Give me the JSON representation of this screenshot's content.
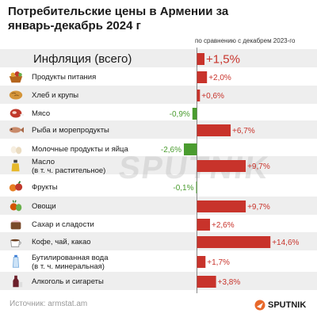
{
  "header": {
    "title": "Потребительские цены в Армении за январь-декабрь 2024 г",
    "subtitle": "по сравнению с декабрем 2023-го"
  },
  "source": "Источник: armstat.am",
  "brand": "SPUTNIK",
  "watermark": "SPUTNIK",
  "colors": {
    "positive": "#c8332b",
    "negative": "#4a9c2f",
    "row_alt": "#eeeeee"
  },
  "chart_data": {
    "type": "bar",
    "orientation": "horizontal",
    "title": "Потребительские цены в Армении за январь-декабрь 2024 г",
    "subtitle": "по сравнению с декабрем 2023-го",
    "categories": [
      "Инфляция (всего)",
      "Продукты питания",
      "Хлеб и крупы",
      "Мясо",
      "Рыба и морепродукты",
      "Молочные продукты и яйца",
      "Масло\n(в т. ч. растительное)",
      "Фрукты",
      "Овощи",
      "Сахар и сладости",
      "Кофе, чай, какао",
      "Бутилированная вода\n(в т. ч. минеральная)",
      "Алкоголь и сигареты"
    ],
    "values": [
      1.5,
      2.0,
      0.6,
      -0.9,
      6.7,
      -2.6,
      9.7,
      -0.1,
      9.7,
      2.6,
      14.6,
      1.7,
      3.8
    ],
    "value_labels": [
      "+1,5%",
      "+2,0%",
      "+0,6%",
      "-0,9%",
      "+6,7%",
      "-2,6%",
      "+9,7%",
      "-0,1%",
      "+9,7%",
      "+2,6%",
      "+14,6%",
      "+1,7%",
      "+3,8%"
    ],
    "icons": [
      "",
      "food-basket-icon",
      "bread-icon",
      "meat-icon",
      "fish-icon",
      "dairy-eggs-icon",
      "oil-bottle-icon",
      "fruits-icon",
      "vegetables-icon",
      "sweets-icon",
      "coffee-icon",
      "water-bottle-icon",
      "alcohol-icon"
    ],
    "xlim": [
      -3,
      15
    ]
  }
}
